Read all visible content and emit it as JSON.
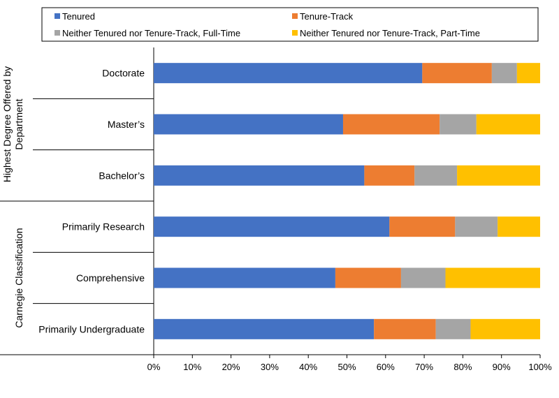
{
  "chart_data": {
    "type": "bar",
    "orientation": "horizontal",
    "stacked": "percent",
    "title": "",
    "xlabel": "",
    "ylabel": "",
    "xlim": [
      0,
      100
    ],
    "x_ticks": [
      "0%",
      "10%",
      "20%",
      "30%",
      "40%",
      "50%",
      "60%",
      "70%",
      "80%",
      "90%",
      "100%"
    ],
    "legend_position": "top",
    "categories": [
      "Doctorate",
      "Master’s",
      "Bachelor’s",
      "Primarily Research",
      "Comprehensive",
      "Primarily Undergraduate"
    ],
    "groups": [
      {
        "label": "Highest Degree Offered by Department",
        "label_lines": [
          "Highest Degree Offered by",
          "Department"
        ],
        "categories": [
          "Doctorate",
          "Master’s",
          "Bachelor’s"
        ]
      },
      {
        "label": "Carnegie Classification",
        "label_lines": [
          "Carnegie Classification"
        ],
        "categories": [
          "Primarily Research",
          "Comprehensive",
          "Primarily Undergraduate"
        ]
      }
    ],
    "series": [
      {
        "name": "Tenured",
        "color": "#4472C4",
        "values": [
          69.5,
          49,
          54.5,
          61,
          47,
          57
        ]
      },
      {
        "name": "Tenure-Track",
        "color": "#ED7D31",
        "values": [
          18,
          25,
          13,
          17,
          17,
          16
        ]
      },
      {
        "name": "Neither Tenured nor Tenure-Track, Full-Time",
        "color": "#A5A5A5",
        "values": [
          6.5,
          9.5,
          11,
          11,
          11.5,
          9
        ]
      },
      {
        "name": "Neither Tenured nor Tenure-Track, Part-Time",
        "color": "#FFC000",
        "values": [
          6,
          16.5,
          21.5,
          11,
          24.5,
          18
        ]
      }
    ]
  }
}
